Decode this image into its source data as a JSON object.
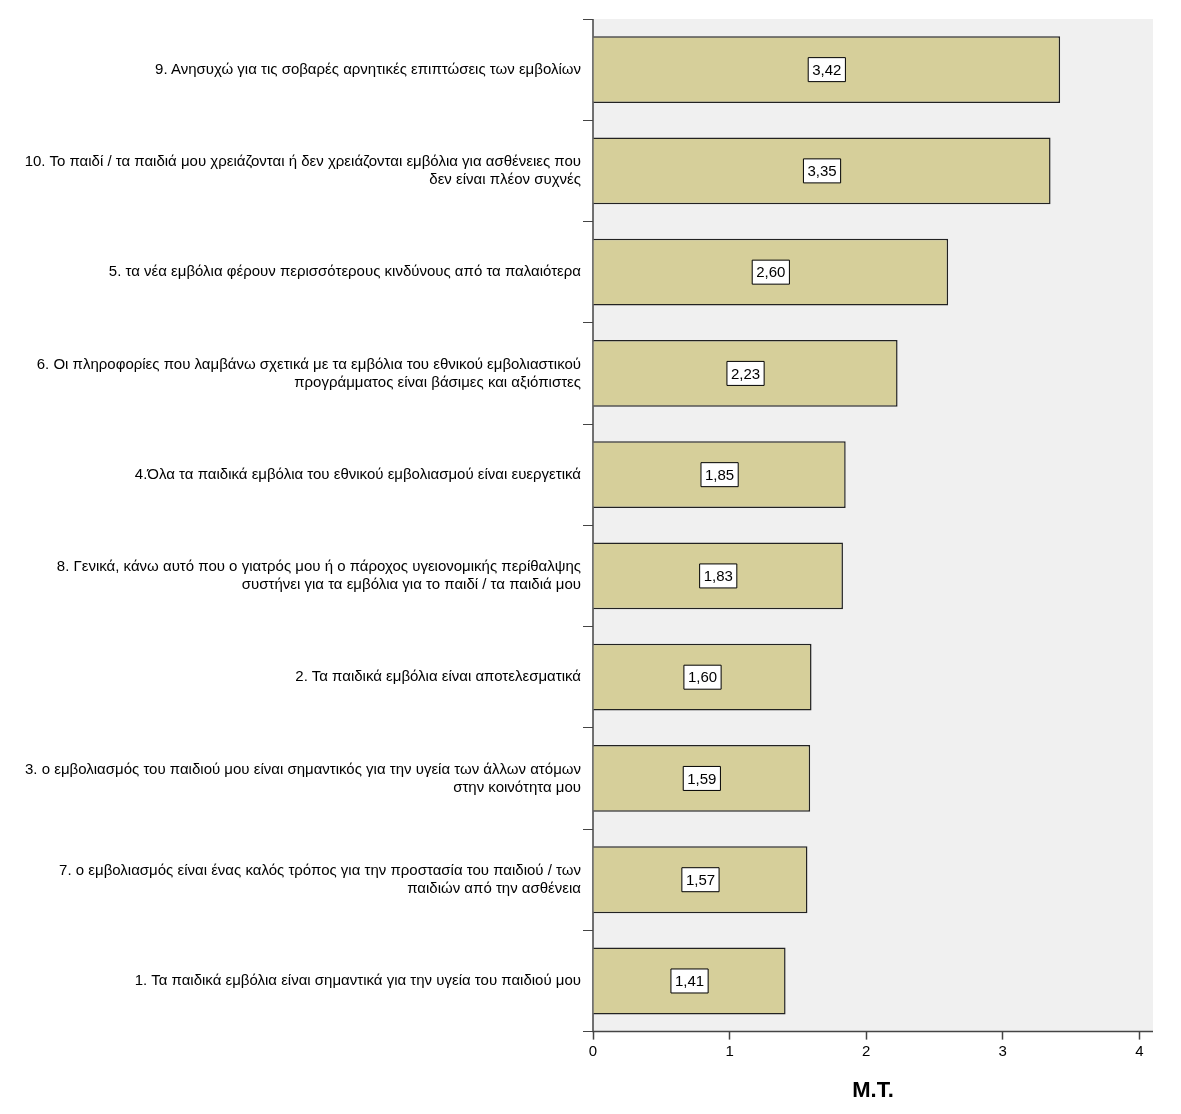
{
  "chart_data": {
    "type": "bar",
    "orientation": "horizontal",
    "xlabel": "M.T.",
    "categories": [
      "9. Ανησυχώ για τις σοβαρές αρνητικές επιπτώσεις των εμβολίων",
      "10. Το παιδί / τα παιδιά μου χρειάζονται ή δεν χρειάζονται εμβόλια για ασθένειες που δεν είναι πλέον συχνές",
      "5. τα νέα εμβόλια φέρουν περισσότερους κινδύνους από τα παλαιότερα",
      "6. Οι πληροφορίες που λαμβάνω σχετικά με τα εμβόλια του εθνικού εμβολιαστικού προγράμματος είναι βάσιμες και αξιόπιστες",
      "4.Όλα τα παιδικά εμβόλια του εθνικού εμβολιασμού είναι ευεργετικά",
      "8. Γενικά, κάνω αυτό που ο γιατρός μου ή ο πάροχος υγειονομικής περίθαλψης συστήνει για τα εμβόλια για το παιδί / τα παιδιά μου",
      "2. Τα παιδικά εμβόλια είναι αποτελεσματικά",
      "3. ο εμβολιασμός του παιδιού μου είναι σημαντικός για την υγεία των άλλων ατόμων στην κοινότητα μου",
      "7. ο εμβολιασμός είναι ένας καλός τρόπος για την προστασία του παιδιού / των παιδιών από την ασθένεια",
      "1. Τα παιδικά εμβόλια είναι σημαντικά για την υγεία του παιδιού μου"
    ],
    "values": [
      3.42,
      3.35,
      2.6,
      2.23,
      1.85,
      1.83,
      1.6,
      1.59,
      1.57,
      1.41
    ],
    "value_labels": [
      "3,42",
      "3,35",
      "2,60",
      "2,23",
      "1,85",
      "1,83",
      "1,60",
      "1,59",
      "1,57",
      "1,41"
    ],
    "color": "#d6cf9a",
    "xlim": [
      0,
      4.1
    ],
    "xticks": [
      0,
      1,
      2,
      3,
      4
    ],
    "grid": false,
    "legend": false
  }
}
